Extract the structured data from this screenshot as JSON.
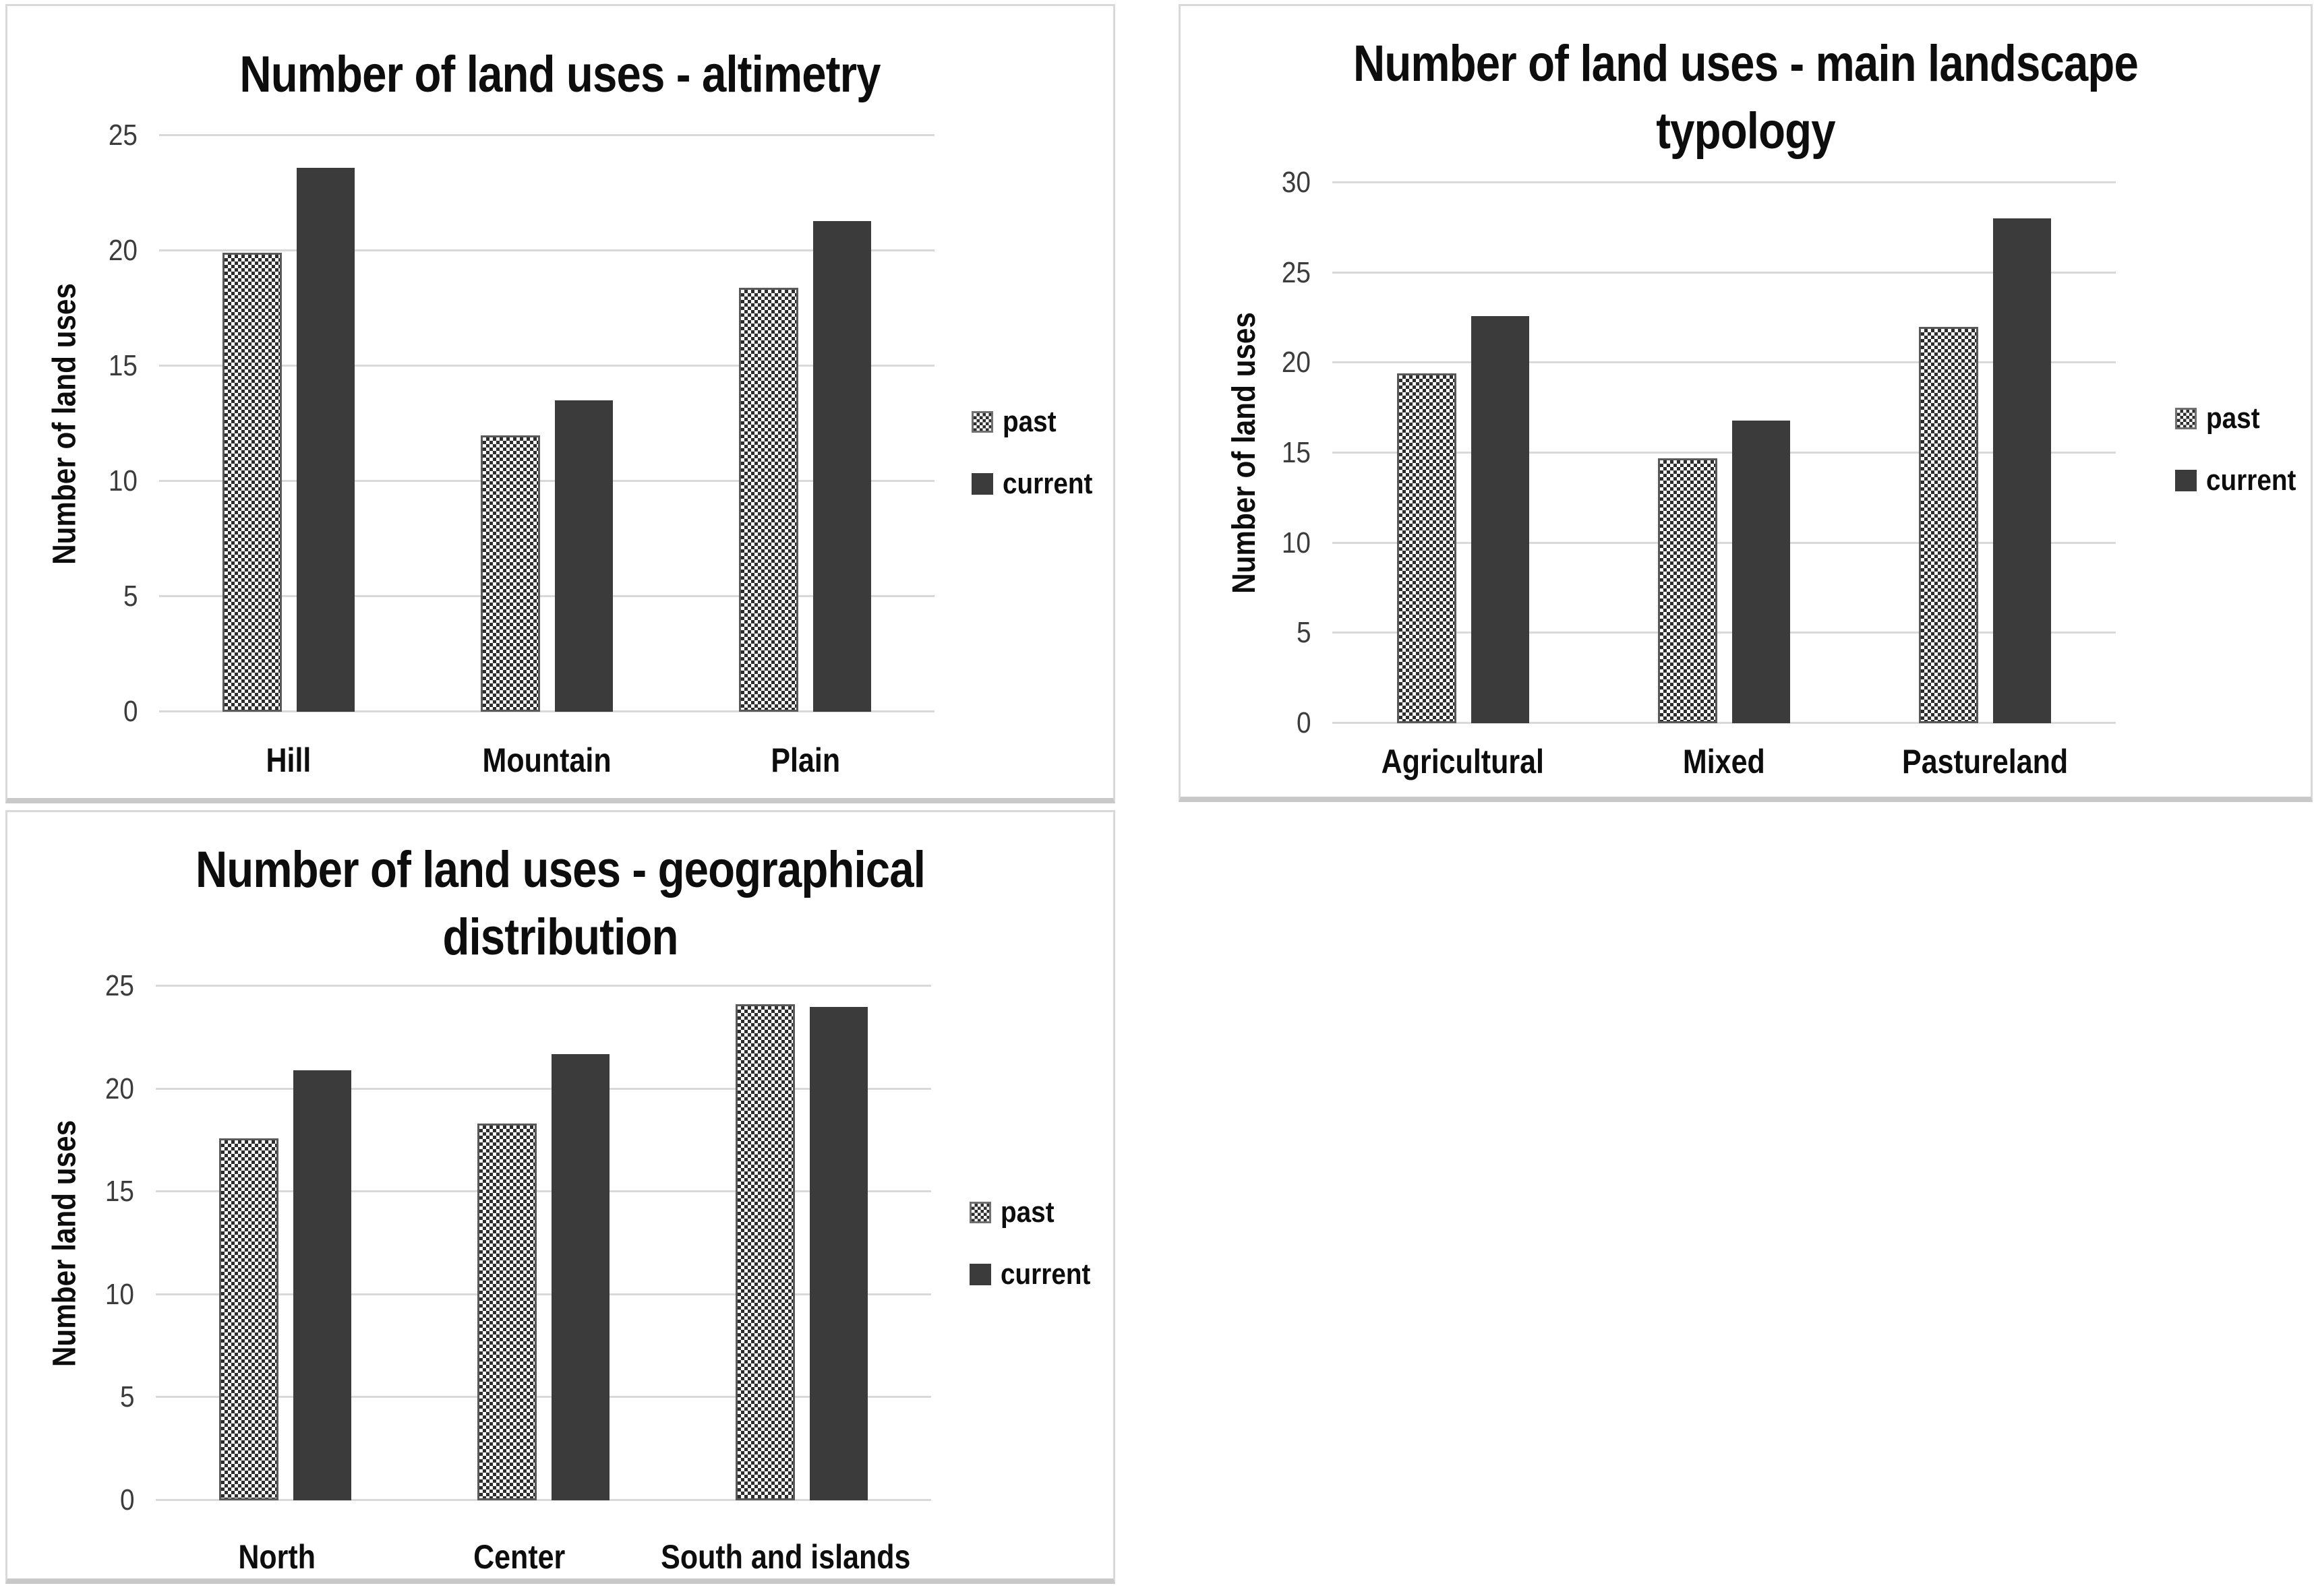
{
  "colors": {
    "current_bar": "#3b3b3b",
    "past_checker_dark": "#2d2d2d",
    "past_checker_light": "#ffffff",
    "gridline": "#d9d9d9",
    "panel_border": "#d9d9d9",
    "tick_text": "#3c3c3c",
    "title_text": "#0d0d0d"
  },
  "chart_data": [
    {
      "type": "bar",
      "title": "Number of land uses - altimetry",
      "ylabel": "Number of land uses",
      "xlabel": "",
      "ylim": [
        0,
        25
      ],
      "yticks": [
        0,
        5,
        10,
        15,
        20,
        25
      ],
      "grid": true,
      "legend_position": "right",
      "legend_entries": [
        "past",
        "current"
      ],
      "categories": [
        "Hill",
        "Mountain",
        "Plain"
      ],
      "series": [
        {
          "name": "past",
          "style": "checker",
          "values": [
            19.9,
            12.0,
            18.4
          ]
        },
        {
          "name": "current",
          "style": "solid",
          "values": [
            23.6,
            13.5,
            21.3
          ]
        }
      ]
    },
    {
      "type": "bar",
      "title": "Number of land uses - main landscape typology",
      "ylabel": "Number of land uses",
      "xlabel": "",
      "ylim": [
        0,
        30
      ],
      "yticks": [
        0,
        5,
        10,
        15,
        20,
        25,
        30
      ],
      "grid": true,
      "legend_position": "right",
      "legend_entries": [
        "past",
        "current"
      ],
      "categories": [
        "Agricultural",
        "Mixed",
        "Pastureland"
      ],
      "series": [
        {
          "name": "past",
          "style": "checker",
          "values": [
            19.4,
            14.7,
            22.0
          ]
        },
        {
          "name": "current",
          "style": "solid",
          "values": [
            22.6,
            16.8,
            28.0
          ]
        }
      ]
    },
    {
      "type": "bar",
      "title": "Number of land uses - geographical distribution",
      "ylabel": "Number land uses",
      "xlabel": "",
      "ylim": [
        0,
        25
      ],
      "yticks": [
        0,
        5,
        10,
        15,
        20,
        25
      ],
      "grid": true,
      "legend_position": "right",
      "legend_entries": [
        "past",
        "current"
      ],
      "categories": [
        "North",
        "Center",
        "South and islands"
      ],
      "series": [
        {
          "name": "past",
          "style": "checker",
          "values": [
            17.6,
            18.3,
            24.1
          ]
        },
        {
          "name": "current",
          "style": "solid",
          "values": [
            20.9,
            21.7,
            24.0
          ]
        }
      ]
    }
  ]
}
